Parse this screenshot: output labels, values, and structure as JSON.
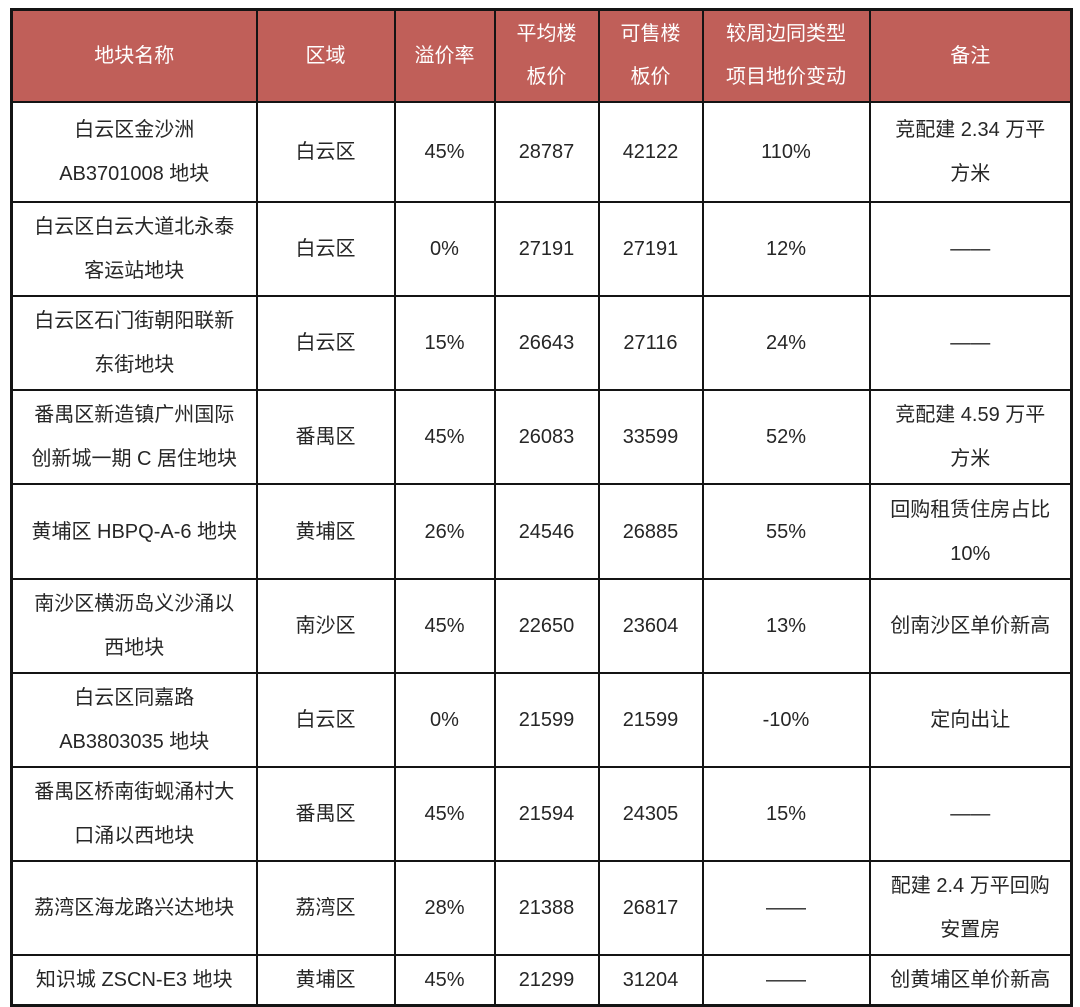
{
  "table": {
    "columns": [
      "name",
      "district",
      "premium_rate",
      "avg_floor_price",
      "sellable_floor_price",
      "price_change_vs_nearby",
      "note"
    ],
    "headers": [
      "地块名称",
      "区域",
      "溢价率",
      "平均楼\n板价",
      "可售楼\n板价",
      "较周边同类型\n项目地价变动",
      "备注"
    ],
    "rows": [
      {
        "name": "白云区金沙洲\nAB3701008 地块",
        "district": "白云区",
        "premium_rate": "45%",
        "avg_floor_price": "28787",
        "sellable_floor_price": "42122",
        "price_change_vs_nearby": "110%",
        "note": "竞配建 2.34 万平\n方米"
      },
      {
        "name": "白云区白云大道北永泰\n客运站地块",
        "district": "白云区",
        "premium_rate": "0%",
        "avg_floor_price": "27191",
        "sellable_floor_price": "27191",
        "price_change_vs_nearby": "12%",
        "note": "——"
      },
      {
        "name": "白云区石门街朝阳联新\n东街地块",
        "district": "白云区",
        "premium_rate": "15%",
        "avg_floor_price": "26643",
        "sellable_floor_price": "27116",
        "price_change_vs_nearby": "24%",
        "note": "——"
      },
      {
        "name": "番禺区新造镇广州国际\n创新城一期 C 居住地块",
        "district": "番禺区",
        "premium_rate": "45%",
        "avg_floor_price": "26083",
        "sellable_floor_price": "33599",
        "price_change_vs_nearby": "52%",
        "note": "竞配建 4.59 万平\n方米"
      },
      {
        "name": "黄埔区 HBPQ-A-6 地块",
        "district": "黄埔区",
        "premium_rate": "26%",
        "avg_floor_price": "24546",
        "sellable_floor_price": "26885",
        "price_change_vs_nearby": "55%",
        "note": "回购租赁住房占比\n10%"
      },
      {
        "name": "南沙区横沥岛义沙涌以\n西地块",
        "district": "南沙区",
        "premium_rate": "45%",
        "avg_floor_price": "22650",
        "sellable_floor_price": "23604",
        "price_change_vs_nearby": "13%",
        "note": "创南沙区单价新高"
      },
      {
        "name": "白云区同嘉路\nAB3803035 地块",
        "district": "白云区",
        "premium_rate": "0%",
        "avg_floor_price": "21599",
        "sellable_floor_price": "21599",
        "price_change_vs_nearby": "-10%",
        "note": "定向出让"
      },
      {
        "name": "番禺区桥南街蚬涌村大\n口涌以西地块",
        "district": "番禺区",
        "premium_rate": "45%",
        "avg_floor_price": "21594",
        "sellable_floor_price": "24305",
        "price_change_vs_nearby": "15%",
        "note": "——"
      },
      {
        "name": "荔湾区海龙路兴达地块",
        "district": "荔湾区",
        "premium_rate": "28%",
        "avg_floor_price": "21388",
        "sellable_floor_price": "26817",
        "price_change_vs_nearby": "——",
        "note": "配建 2.4 万平回购\n安置房"
      },
      {
        "name": "知识城 ZSCN-E3 地块",
        "district": "黄埔区",
        "premium_rate": "45%",
        "avg_floor_price": "21299",
        "sellable_floor_price": "31204",
        "price_change_vs_nearby": "——",
        "note": "创黄埔区单价新高"
      }
    ],
    "style": {
      "header_bg_color": "#C05F59",
      "header_text_color": "#FFFFFF",
      "body_text_color": "#262626",
      "border_color": "#141414"
    }
  }
}
